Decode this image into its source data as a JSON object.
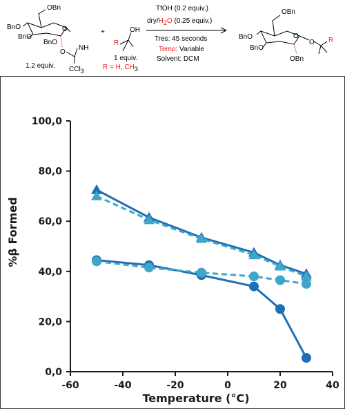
{
  "scheme": {
    "donor": {
      "obn_top": "OBn",
      "bno_left": "BnO",
      "bno_mid": "BnO",
      "bno_bottom": "BnO",
      "o_ring": "O",
      "o_link": "O",
      "nh": "NH",
      "ccl3": "CCl",
      "ccl3_sub": "3",
      "equiv": "1.2 equiv."
    },
    "plus": "+",
    "acceptor": {
      "oh": "OH",
      "r": "R",
      "equiv": "1 equiv.",
      "r_def": "R = H, CH",
      "r_def_sub": "3"
    },
    "conditions": {
      "line1": "TfOH (0.2 equiv.)",
      "line2_a": "dry/",
      "line2_b": "H",
      "line2_c": "2",
      "line2_d": "O",
      "line2_e": " (0.25 equiv.)",
      "line3": "Tres: 45 seconds",
      "line4_a": "Temp",
      "line4_b": ": Variable",
      "line5": "Solvent: DCM"
    },
    "product": {
      "obn_top": "OBn",
      "bno_left": "BnO",
      "bno_mid": "BnO",
      "obn_bottom": "OBn",
      "o_ring": "O",
      "o_link": "O",
      "r": "R"
    }
  },
  "chart_data": {
    "type": "line",
    "xlabel": "Temperature (°C)",
    "ylabel": "%β Formed",
    "xlim": [
      -60,
      40
    ],
    "ylim": [
      0,
      100
    ],
    "xticks": [
      -60,
      -40,
      -20,
      0,
      20,
      40
    ],
    "yticks": [
      0,
      20,
      40,
      60,
      80,
      100
    ],
    "xtick_labels": [
      "-60",
      "-40",
      "-20",
      "0",
      "20",
      "40"
    ],
    "ytick_labels": [
      "0,0",
      "20,0",
      "40,0",
      "60,0",
      "80,0",
      "100,0"
    ],
    "grid": false,
    "legend": "none",
    "series": [
      {
        "marker": "triangle",
        "line": "solid",
        "color": "#1f6fb8",
        "x": [
          -50,
          -30,
          -10,
          10,
          20,
          30
        ],
        "y": [
          72.5,
          61.5,
          53.5,
          47.5,
          42.5,
          39
        ]
      },
      {
        "marker": "triangle",
        "line": "dashed",
        "color": "#3fa6c8",
        "x": [
          -50,
          -30,
          -10,
          10,
          20,
          30
        ],
        "y": [
          70,
          60.5,
          53,
          46.5,
          42,
          38
        ]
      },
      {
        "marker": "circle",
        "line": "solid",
        "color": "#1f6fb8",
        "x": [
          -50,
          -30,
          -10,
          10,
          20,
          30
        ],
        "y": [
          44.5,
          42.5,
          38.5,
          34,
          25,
          5.5
        ]
      },
      {
        "marker": "circle",
        "line": "dashed",
        "color": "#3fa6c8",
        "x": [
          -50,
          -30,
          -10,
          10,
          20,
          30
        ],
        "y": [
          44,
          41.5,
          39.5,
          38,
          36.5,
          35
        ]
      }
    ]
  }
}
